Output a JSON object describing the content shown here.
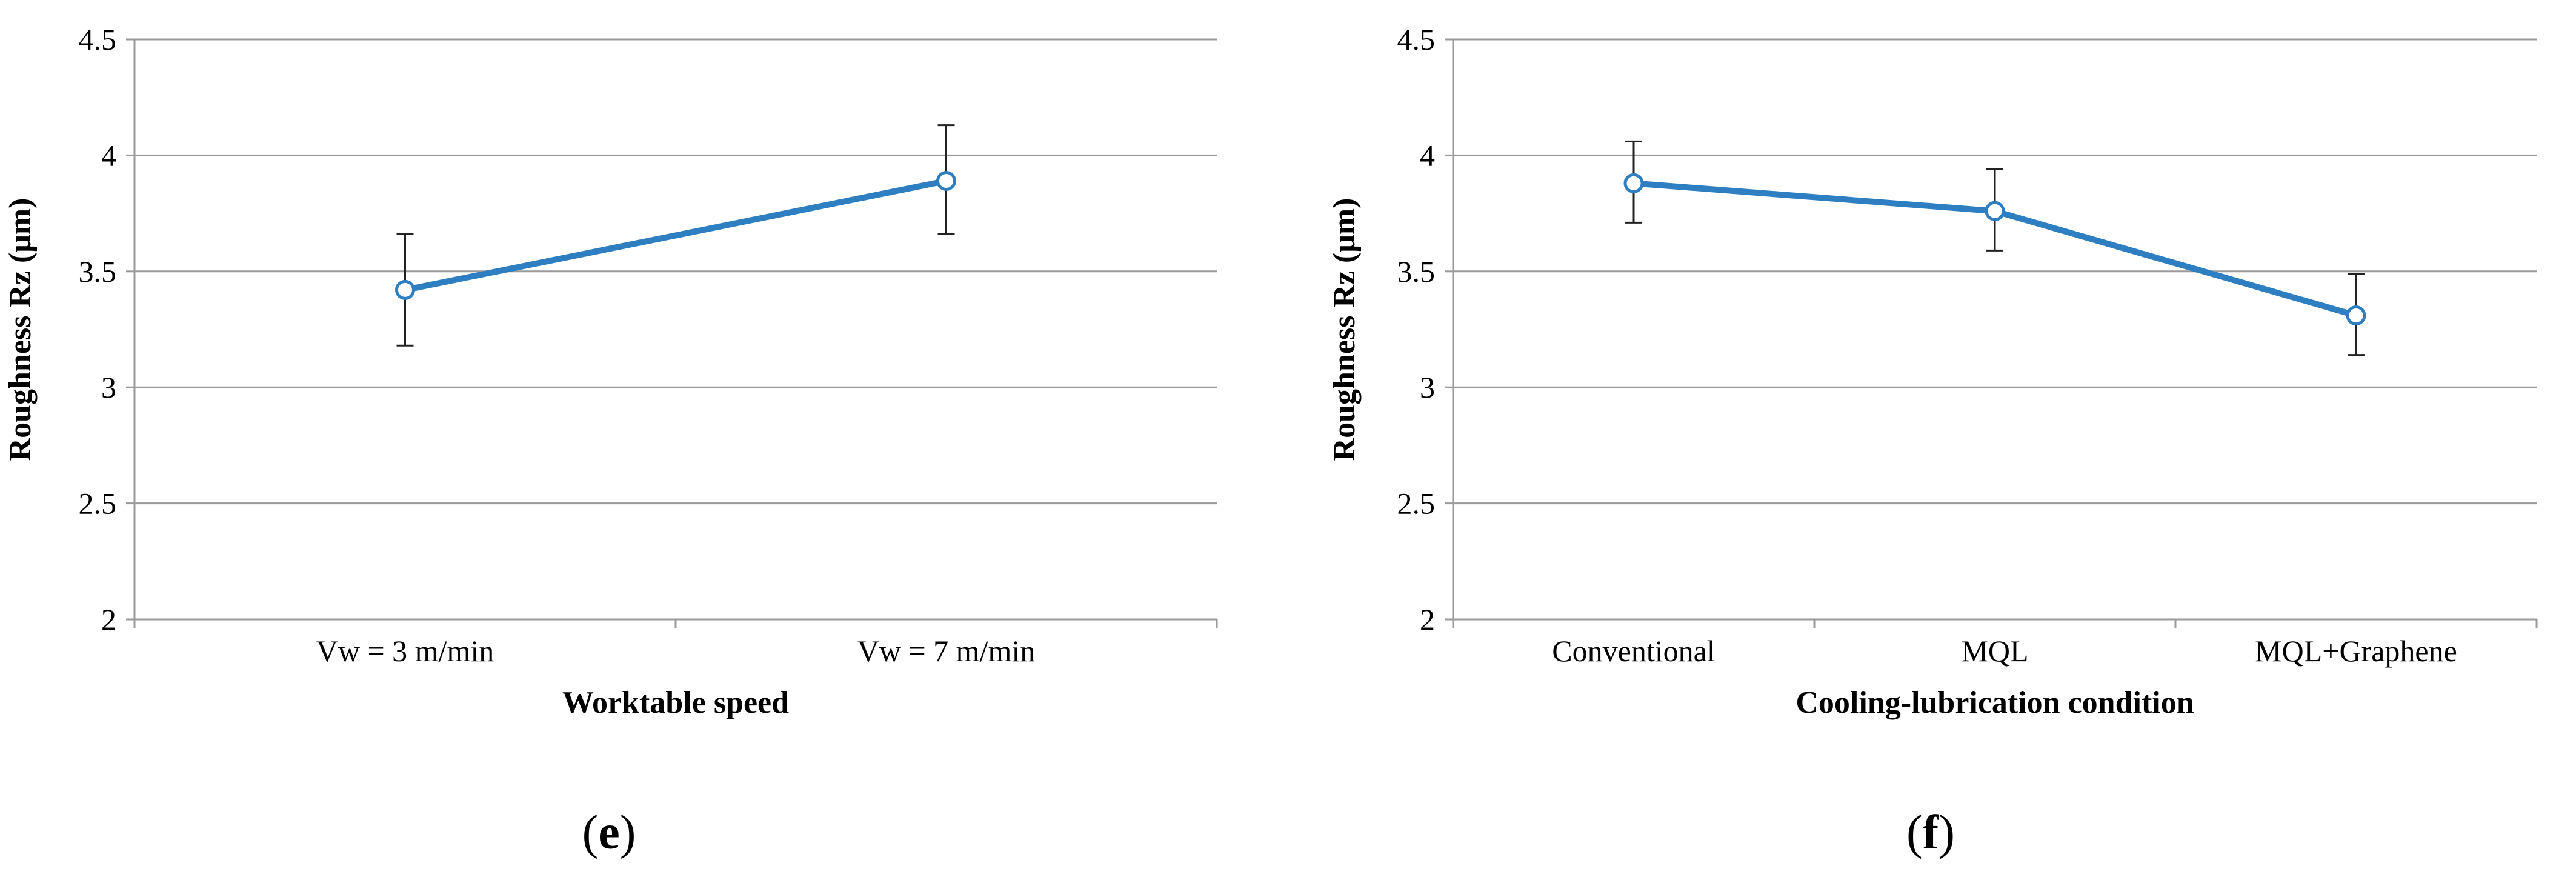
{
  "colors": {
    "series": "#2e7fc1",
    "grid": "#9a9a9a",
    "error_bar": "#222222"
  },
  "chart_data": [
    {
      "id": "e",
      "panel_label": "e",
      "type": "line",
      "xlabel": "Worktable speed",
      "ylabel": "Roughness Rz (μm)",
      "ylim": [
        2,
        4.5
      ],
      "yticks": [
        "2",
        "2.5",
        "3",
        "3.5",
        "4",
        "4.5"
      ],
      "categories": [
        "Vw = 3 m/min",
        "Vw = 7 m/min"
      ],
      "series": [
        {
          "name": "Rz",
          "values": [
            3.42,
            3.89
          ],
          "err_low": [
            3.18,
            3.66
          ],
          "err_high": [
            3.66,
            4.13
          ]
        }
      ],
      "grid": true
    },
    {
      "id": "f",
      "panel_label": "f",
      "type": "line",
      "xlabel": "Cooling-lubrication  condition",
      "ylabel": "Roughness Rz (μm)",
      "ylim": [
        2,
        4.5
      ],
      "yticks": [
        "2",
        "2.5",
        "3",
        "3.5",
        "4",
        "4.5"
      ],
      "categories": [
        "Conventional",
        "MQL",
        "MQL+Graphene"
      ],
      "series": [
        {
          "name": "Rz",
          "values": [
            3.88,
            3.76,
            3.31
          ],
          "err_low": [
            3.71,
            3.59,
            3.14
          ],
          "err_high": [
            4.06,
            3.94,
            3.49
          ]
        }
      ],
      "grid": true
    }
  ]
}
